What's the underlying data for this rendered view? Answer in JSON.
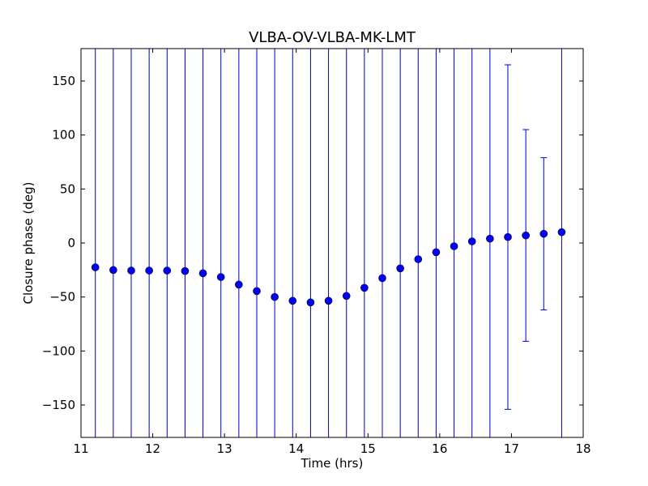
{
  "chart_data": {
    "type": "scatter",
    "title": "VLBA-OV-VLBA-MK-LMT",
    "xlabel": "Time (hrs)",
    "ylabel": "Closure phase (deg)",
    "xlim": [
      11,
      18
    ],
    "ylim": [
      -180,
      180
    ],
    "grid": false,
    "x_ticks": [
      11,
      12,
      13,
      14,
      15,
      16,
      17,
      18
    ],
    "y_ticks": [
      -150,
      -100,
      -50,
      0,
      50,
      100,
      150
    ],
    "x_tick_labels": [
      "11",
      "12",
      "13",
      "14",
      "15",
      "16",
      "17",
      "18"
    ],
    "y_tick_labels": [
      "−150",
      "−100",
      "−50",
      "0",
      "50",
      "100",
      "150"
    ],
    "series": [
      {
        "marker": "circle",
        "color": "#0000ff",
        "errorbar_color": "#0000cc",
        "points": [
          {
            "x": 11.2,
            "y": -22.5,
            "yerr_low": -180,
            "yerr_high": 180
          },
          {
            "x": 11.45,
            "y": -25,
            "yerr_low": -180,
            "yerr_high": 180
          },
          {
            "x": 11.7,
            "y": -25.5,
            "yerr_low": -180,
            "yerr_high": 180
          },
          {
            "x": 11.95,
            "y": -25.5,
            "yerr_low": -180,
            "yerr_high": 180
          },
          {
            "x": 12.2,
            "y": -25.5,
            "yerr_low": -180,
            "yerr_high": 180
          },
          {
            "x": 12.45,
            "y": -26,
            "yerr_low": -180,
            "yerr_high": 180
          },
          {
            "x": 12.7,
            "y": -28,
            "yerr_low": -180,
            "yerr_high": 180
          },
          {
            "x": 12.95,
            "y": -31.5,
            "yerr_low": -180,
            "yerr_high": 180
          },
          {
            "x": 13.2,
            "y": -38.5,
            "yerr_low": -180,
            "yerr_high": 180
          },
          {
            "x": 13.45,
            "y": -44.5,
            "yerr_low": -180,
            "yerr_high": 180
          },
          {
            "x": 13.7,
            "y": -50,
            "yerr_low": -180,
            "yerr_high": 180
          },
          {
            "x": 13.95,
            "y": -53.5,
            "yerr_low": -180,
            "yerr_high": 180
          },
          {
            "x": 14.2,
            "y": -55,
            "yerr_low": -180,
            "yerr_high": 180
          },
          {
            "x": 14.45,
            "y": -53.5,
            "yerr_low": -180,
            "yerr_high": 180
          },
          {
            "x": 14.7,
            "y": -49,
            "yerr_low": -180,
            "yerr_high": 180
          },
          {
            "x": 14.95,
            "y": -41.5,
            "yerr_low": -180,
            "yerr_high": 180
          },
          {
            "x": 15.2,
            "y": -32.5,
            "yerr_low": -180,
            "yerr_high": 180
          },
          {
            "x": 15.45,
            "y": -23.5,
            "yerr_low": -180,
            "yerr_high": 180
          },
          {
            "x": 15.7,
            "y": -15,
            "yerr_low": -180,
            "yerr_high": 180
          },
          {
            "x": 15.95,
            "y": -8.5,
            "yerr_low": -180,
            "yerr_high": 180
          },
          {
            "x": 16.2,
            "y": -3,
            "yerr_low": -180,
            "yerr_high": 180
          },
          {
            "x": 16.45,
            "y": 1.5,
            "yerr_low": -180,
            "yerr_high": 180
          },
          {
            "x": 16.7,
            "y": 4,
            "yerr_low": -180,
            "yerr_high": 180
          },
          {
            "x": 16.95,
            "y": 5.5,
            "yerr_low": -154,
            "yerr_high": 165
          },
          {
            "x": 17.2,
            "y": 7,
            "yerr_low": -91,
            "yerr_high": 105
          },
          {
            "x": 17.45,
            "y": 8.5,
            "yerr_low": -62,
            "yerr_high": 79
          },
          {
            "x": 17.7,
            "y": 10,
            "yerr_low": -180,
            "yerr_high": 180
          }
        ]
      }
    ]
  }
}
